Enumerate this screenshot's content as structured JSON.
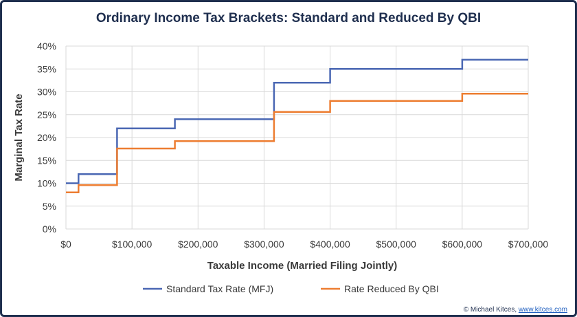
{
  "chart_data": {
    "type": "line",
    "title": "Ordinary Income Tax Brackets: Standard and Reduced By QBI",
    "xlabel": "Taxable Income (Married Filing Jointly)",
    "ylabel": "Marginal Tax Rate",
    "xlim": [
      0,
      700000
    ],
    "ylim": [
      0,
      40
    ],
    "x_ticks": [
      "$0",
      "$100,000",
      "$200,000",
      "$300,000",
      "$400,000",
      "$500,000",
      "$600,000",
      "$700,000"
    ],
    "y_ticks": [
      "0%",
      "5%",
      "10%",
      "15%",
      "20%",
      "25%",
      "30%",
      "35%",
      "40%"
    ],
    "grid": true,
    "legend_position": "bottom",
    "series": [
      {
        "name": "Standard Tax Rate (MFJ)",
        "color": "#4a67b3",
        "x": [
          0,
          19050,
          19050,
          77400,
          77400,
          165000,
          165000,
          315000,
          315000,
          400000,
          400000,
          600000,
          600000,
          700000
        ],
        "y": [
          10,
          10,
          12,
          12,
          22,
          22,
          24,
          24,
          32,
          32,
          35,
          35,
          37,
          37
        ]
      },
      {
        "name": "Rate Reduced By QBI",
        "color": "#ed7d31",
        "x": [
          0,
          19050,
          19050,
          77400,
          77400,
          165000,
          165000,
          315000,
          315000,
          400000,
          400000,
          600000,
          600000,
          700000
        ],
        "y": [
          8,
          8,
          9.6,
          9.6,
          17.6,
          17.6,
          19.2,
          19.2,
          25.6,
          25.6,
          28,
          28,
          29.6,
          29.6
        ]
      }
    ]
  },
  "credit": {
    "prefix": "© Michael Kitces, ",
    "link": "www.kitces.com"
  }
}
